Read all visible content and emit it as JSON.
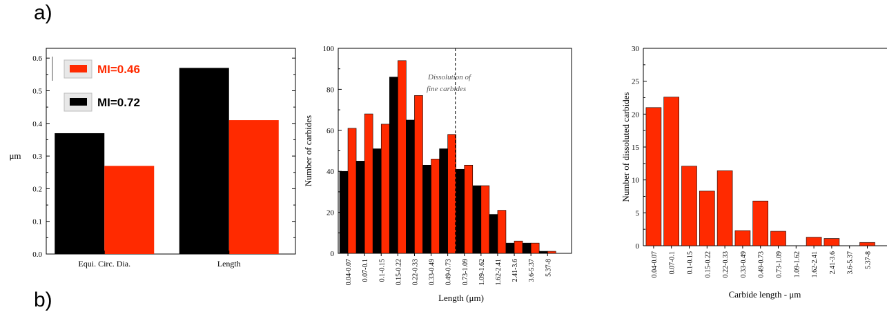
{
  "figure": {
    "label_a": "a)",
    "label_b": "b)"
  },
  "colors": {
    "mi046": "#ff2a00",
    "mi072": "#000000",
    "single": "#ff2a00"
  },
  "chart_data": [
    {
      "type": "bar",
      "categories": [
        "Equi. Circ. Dia.",
        "Length"
      ],
      "series": [
        {
          "name": "MI=0.72",
          "values": [
            0.37,
            0.57
          ]
        },
        {
          "name": "MI=0.46",
          "values": [
            0.27,
            0.41
          ]
        }
      ],
      "title": "",
      "xlabel": "",
      "ylabel": "μm",
      "ylim": [
        0,
        0.63
      ],
      "yticks": [
        "0.0",
        "0.1",
        "0.2",
        "0.3",
        "0.4",
        "0.5",
        "0.6"
      ],
      "legend": "top-left"
    },
    {
      "type": "bar",
      "categories": [
        "0.04-0.07",
        "0.07-0.1",
        "0.1-0.15",
        "0.15-0.22",
        "0.22-0.33",
        "0.33-0.49",
        "0.49-0.73",
        "0.73-1.09",
        "1.09-1.62",
        "1.62-2.41",
        "2.41-3.6",
        "3.6-5.37",
        "5.37-8"
      ],
      "series": [
        {
          "values": [
            40,
            45,
            51,
            86,
            65,
            43,
            51,
            41,
            33,
            19,
            5,
            5,
            1
          ]
        },
        {
          "values": [
            61,
            68,
            63,
            94,
            77,
            46,
            58,
            43,
            33,
            21,
            6,
            5,
            1
          ]
        }
      ],
      "title": "",
      "xlabel": "Length (μm)",
      "ylabel": "Number of carbides",
      "ylim": [
        0,
        100
      ],
      "yticks": [
        "0",
        "20",
        "40",
        "60",
        "80",
        "100"
      ],
      "annotation": {
        "line1": "Dissolution of",
        "line2": "fine carbides",
        "at_category": "0.73-1.09"
      }
    },
    {
      "type": "bar",
      "categories": [
        "0.04-0.07",
        "0.07-0.1",
        "0.1-0.15",
        "0.15-0.22",
        "0.22-0.33",
        "0.33-0.49",
        "0.49-0.73",
        "0.73-1.09",
        "1.09-1.62",
        "1.62-2.41",
        "2.41-3.6",
        "3.6-5.37",
        "5.37-8"
      ],
      "series": [
        {
          "values": [
            21.0,
            22.6,
            12.1,
            8.3,
            11.4,
            2.3,
            6.8,
            2.2,
            0,
            1.3,
            1.1,
            0,
            0.5
          ]
        }
      ],
      "title": "",
      "xlabel": "Carbide length - μm",
      "ylabel": "Number of dissoluted carbides",
      "ylim": [
        0,
        30
      ],
      "yticks": [
        "0",
        "5",
        "10",
        "15",
        "20",
        "25",
        "30"
      ]
    }
  ]
}
